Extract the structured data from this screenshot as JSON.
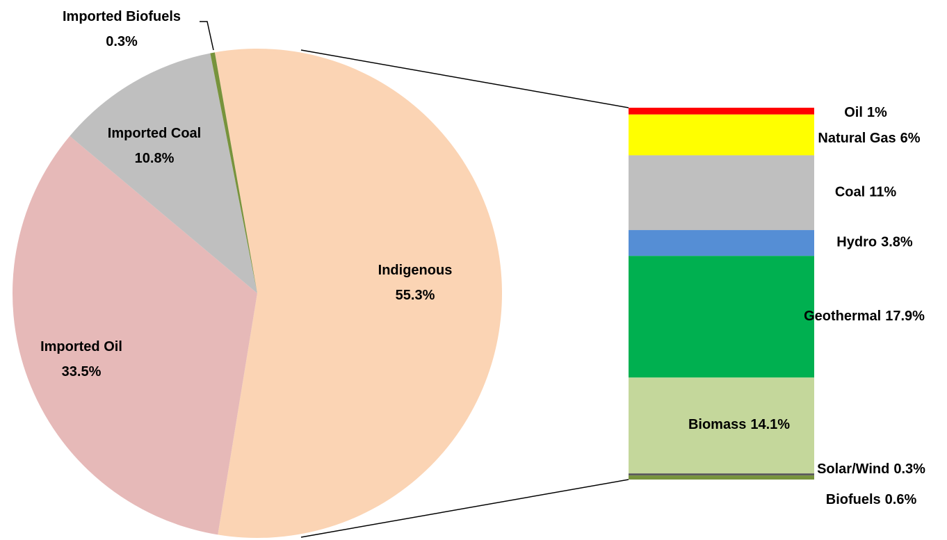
{
  "chart_data": [
    {
      "type": "pie",
      "categories": [
        "Indigenous",
        "Imported Oil",
        "Imported Coal",
        "Imported Biofuels"
      ],
      "values": [
        55.3,
        33.5,
        10.8,
        0.3
      ],
      "value_labels": [
        "55.3%",
        "33.5%",
        "10.8%",
        "0.3%"
      ],
      "colors": [
        "#fbd4b4",
        "#e6b9b8",
        "#bfbfbf",
        "#77933c"
      ]
    },
    {
      "type": "bar",
      "stacked": true,
      "categories": [
        "Oil",
        "Natural Gas",
        "Coal",
        "Hydro",
        "Geothermal",
        "Biomass",
        "Solar/Wind",
        "Biofuels"
      ],
      "values": [
        1,
        6,
        11,
        3.8,
        17.9,
        14.1,
        0.3,
        0.6
      ],
      "value_labels": [
        "1%",
        "6%",
        "11%",
        "3.8%",
        "17.9%",
        "14.1%",
        "0.3%",
        "0.6%"
      ],
      "colors": [
        "#ff0000",
        "#ffff00",
        "#bfbfbf",
        "#558ed5",
        "#00b050",
        "#c4d79b",
        "#595959",
        "#77933c"
      ]
    }
  ]
}
